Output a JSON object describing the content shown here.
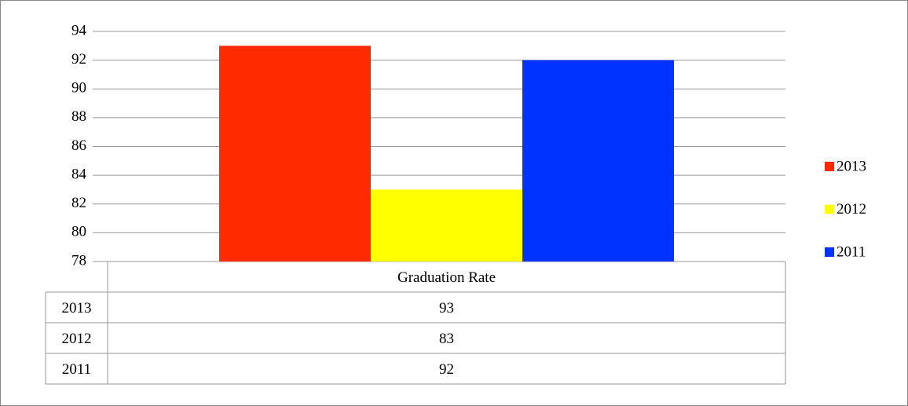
{
  "chart_data": {
    "type": "bar",
    "categories": [
      "Graduation Rate"
    ],
    "series": [
      {
        "name": "2013",
        "color": "#ff2a00",
        "values": [
          93
        ]
      },
      {
        "name": "2012",
        "color": "#ffff00",
        "values": [
          83
        ]
      },
      {
        "name": "2011",
        "color": "#0033ff",
        "values": [
          92
        ]
      }
    ],
    "ylim": [
      78,
      94
    ],
    "yticks": [
      78,
      80,
      82,
      84,
      86,
      88,
      90,
      92,
      94
    ],
    "grid": true,
    "legend": "right",
    "data_table": true
  }
}
